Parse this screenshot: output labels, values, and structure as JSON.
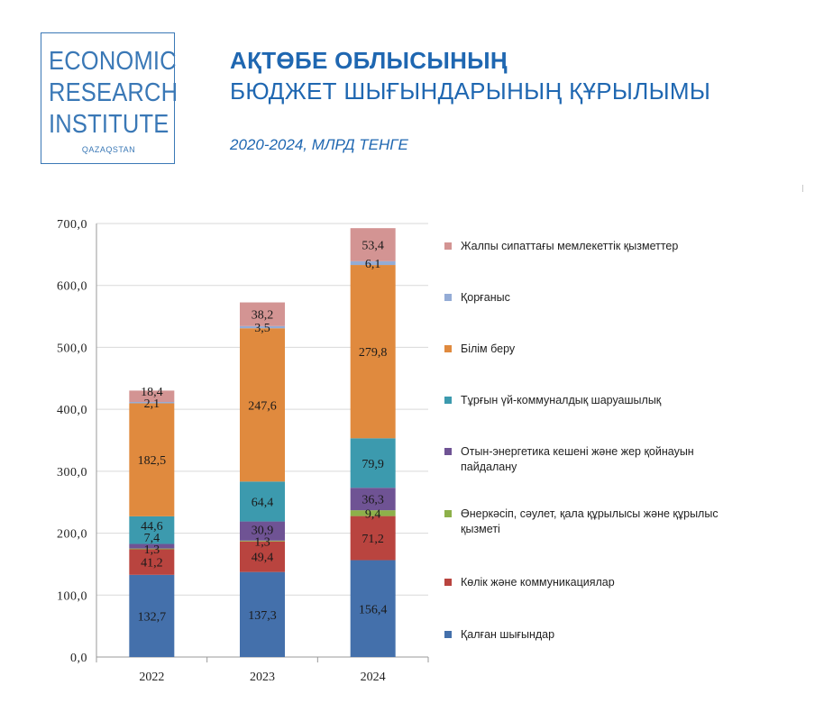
{
  "logo": {
    "lines": [
      "ECONOMIC",
      "RESEARCH",
      "INSTITUTE"
    ],
    "sub": "QAZAQSTAN"
  },
  "header": {
    "title_line1": "АҚТӨБЕ ОБЛЫСЫНЫҢ",
    "title_line2": "БЮДЖЕТ ШЫҒЫНДАРЫНЫҢ ҚҰРЫЛЫМЫ",
    "subtitle": "2020-2024, МЛРД ТЕНГЕ"
  },
  "chart_data": {
    "type": "bar",
    "stacked": true,
    "categories": [
      "2022",
      "2023",
      "2024"
    ],
    "ylim": [
      0,
      700
    ],
    "yticks": [
      "0,0",
      "100,0",
      "200,0",
      "300,0",
      "400,0",
      "500,0",
      "600,0",
      "700,0"
    ],
    "grid": true,
    "legend_position": "right",
    "series": [
      {
        "name": "Қалған шығындар",
        "color": "#4470ab",
        "values": [
          132.7,
          137.3,
          156.4
        ],
        "labels": [
          "132,7",
          "137,3",
          "156,4"
        ]
      },
      {
        "name": "Көлік және коммуникациялар",
        "color": "#b9443f",
        "values": [
          41.2,
          49.4,
          71.2
        ],
        "labels": [
          "41,2",
          "49,4",
          "71,2"
        ]
      },
      {
        "name": "Өнеркәсіп, сәулет, қала құрылысы және құрылыс қызметі",
        "color": "#8db04a",
        "values": [
          1.3,
          1.3,
          9.4
        ],
        "labels": [
          "1,3",
          "1,3",
          "9,4"
        ]
      },
      {
        "name": "Отын-энергетика кешені және жер қойнауын пайдалану",
        "color": "#6f5394",
        "values": [
          7.4,
          30.9,
          36.3
        ],
        "labels": [
          "7,4",
          "30,9",
          "36,3"
        ]
      },
      {
        "name": "Тұрғын үй-коммуналдық шаруашылық",
        "color": "#3c9aae",
        "values": [
          44.6,
          64.4,
          79.9
        ],
        "labels": [
          "44,6",
          "64,4",
          "79,9"
        ]
      },
      {
        "name": "Білім беру",
        "color": "#e08a3e",
        "values": [
          182.5,
          247.6,
          279.8
        ],
        "labels": [
          "182,5",
          "247,6",
          "279,8"
        ]
      },
      {
        "name": "Қорғаныс",
        "color": "#94acd6",
        "values": [
          2.1,
          3.5,
          6.1
        ],
        "labels": [
          "2,1",
          "3,5",
          "6,1"
        ]
      },
      {
        "name": "Жалпы сипаттағы мемлекеттік қызметтер",
        "color": "#d39493",
        "values": [
          18.4,
          38.2,
          53.4
        ],
        "labels": [
          "18,4",
          "38,2",
          "53,4"
        ]
      }
    ]
  }
}
